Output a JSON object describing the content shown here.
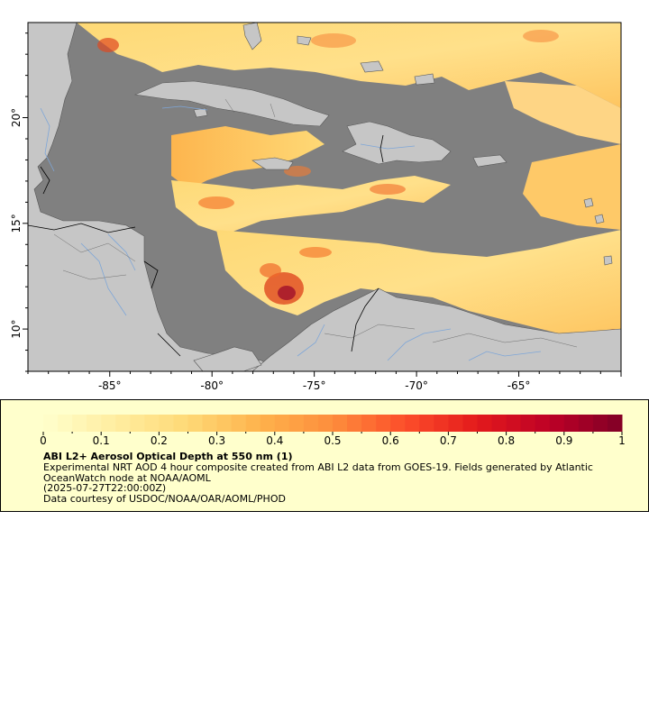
{
  "map": {
    "x_ticks": [
      {
        "lon": -85,
        "label": "-85°"
      },
      {
        "lon": -80,
        "label": "-80°"
      },
      {
        "lon": -75,
        "label": "-75°"
      },
      {
        "lon": -70,
        "label": "-70°"
      },
      {
        "lon": -65,
        "label": "-65°"
      }
    ],
    "y_ticks": [
      {
        "lat": 20,
        "label": "20°"
      },
      {
        "lat": 15,
        "label": "15°"
      },
      {
        "lat": 10,
        "label": "10°"
      }
    ],
    "lon_range": [
      -89,
      -60
    ],
    "lat_range": [
      8,
      24.5
    ],
    "colors": {
      "ocean": "#808080",
      "land": "#c6c6c6",
      "rivers": "#7ea6d8",
      "borders": "#000000",
      "admin_lines": "#6f6f6f"
    }
  },
  "legend": {
    "colorbar": {
      "min": 0,
      "max": 1,
      "ticks": [
        "0",
        "0.1",
        "0.2",
        "0.3",
        "0.4",
        "0.5",
        "0.6",
        "0.7",
        "0.8",
        "0.9",
        "1"
      ],
      "colors": [
        "#ffffcc",
        "#ffeda0",
        "#fed976",
        "#feb24c",
        "#fd8d3c",
        "#fc4e2a",
        "#e31a1c",
        "#bd0026",
        "#800026"
      ]
    },
    "title": "ABI L2+ Aerosol Optical Depth at 550 nm (1)",
    "description": "Experimental NRT AOD 4 hour composite created from ABI L2 data from GOES-19. Fields generated by Atlantic OceanWatch node at NOAA/AOML",
    "time": "(2025-07-27T22:00:00Z)",
    "credit": "Data courtesy of USDOC/NOAA/OAR/AOML/PHOD"
  }
}
